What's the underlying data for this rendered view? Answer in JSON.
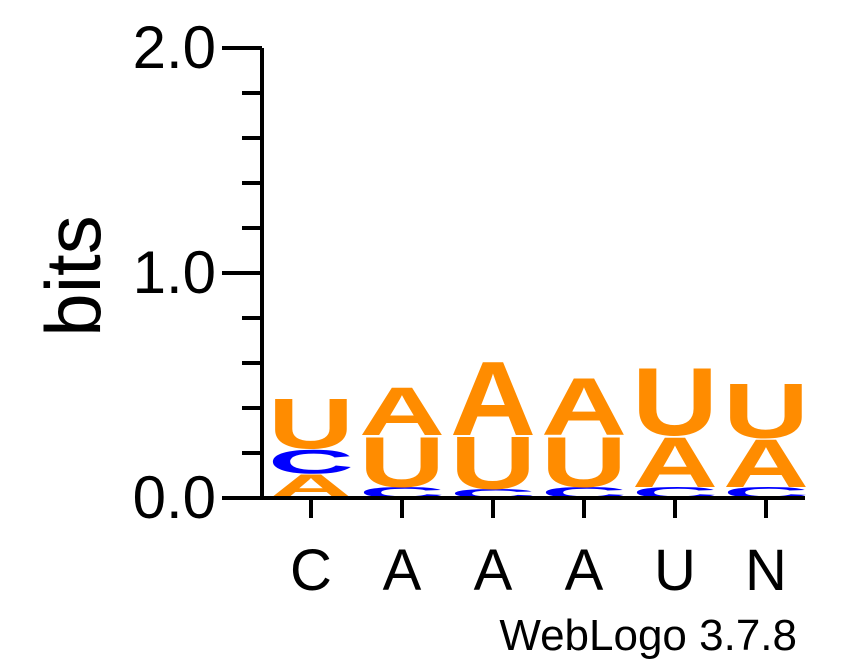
{
  "chart_data": {
    "type": "sequence-logo",
    "ylabel": "bits",
    "ylim": [
      0,
      2.0
    ],
    "yticks": [
      "0.0",
      "1.0",
      "2.0"
    ],
    "y_tick_values": [
      0,
      1,
      2
    ],
    "minor_tick_step": 0.2,
    "categories": [
      "C",
      "A",
      "A",
      "A",
      "U",
      "N"
    ],
    "colors": {
      "A": "#ff8c00",
      "U": "#ff8c00",
      "C": "#0000ff",
      "axis": "#000000"
    },
    "stacks": [
      {
        "position": "C",
        "letters": [
          {
            "letter": "A",
            "height": 0.11
          },
          {
            "letter": "C",
            "height": 0.11
          },
          {
            "letter": "U",
            "height": 0.23
          }
        ]
      },
      {
        "position": "A",
        "letters": [
          {
            "letter": "C",
            "height": 0.05
          },
          {
            "letter": "U",
            "height": 0.23
          },
          {
            "letter": "A",
            "height": 0.22
          }
        ]
      },
      {
        "position": "A",
        "letters": [
          {
            "letter": "C",
            "height": 0.04
          },
          {
            "letter": "U",
            "height": 0.24
          },
          {
            "letter": "A",
            "height": 0.34
          }
        ]
      },
      {
        "position": "A",
        "letters": [
          {
            "letter": "C",
            "height": 0.05
          },
          {
            "letter": "U",
            "height": 0.23
          },
          {
            "letter": "A",
            "height": 0.26
          }
        ]
      },
      {
        "position": "U",
        "letters": [
          {
            "letter": "C",
            "height": 0.05
          },
          {
            "letter": "A",
            "height": 0.23
          },
          {
            "letter": "U",
            "height": 0.31
          }
        ]
      },
      {
        "position": "N",
        "letters": [
          {
            "letter": "C",
            "height": 0.05
          },
          {
            "letter": "A",
            "height": 0.22
          },
          {
            "letter": "U",
            "height": 0.25
          }
        ]
      }
    ]
  },
  "footer": {
    "credit": "WebLogo 3.7.8"
  }
}
